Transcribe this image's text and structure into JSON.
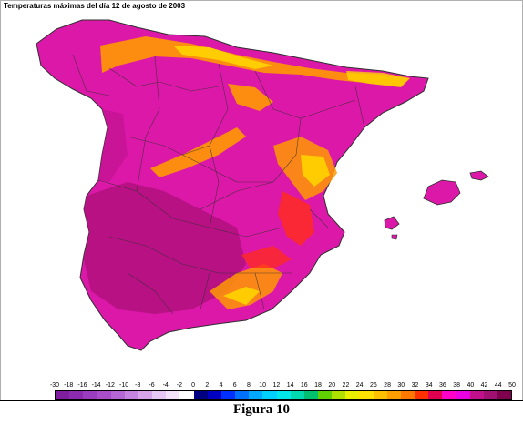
{
  "title": "Temperaturas máximas del día 12 de agosto de 2003",
  "caption": "Figura 10",
  "legend": {
    "labels": [
      "-30",
      "-18",
      "-16",
      "-14",
      "-12",
      "-10",
      "-8",
      "-6",
      "-4",
      "-2",
      "0",
      "2",
      "4",
      "6",
      "8",
      "10",
      "12",
      "14",
      "16",
      "18",
      "20",
      "22",
      "24",
      "26",
      "28",
      "30",
      "32",
      "34",
      "36",
      "38",
      "40",
      "42",
      "44",
      "50"
    ],
    "colors": [
      "#7f1fa0",
      "#8c2bb0",
      "#9a3cbf",
      "#a84ecb",
      "#b766d6",
      "#c683e0",
      "#d7a4ea",
      "#e6c6f2",
      "#f2e1f8",
      "#ffffff",
      "#000080",
      "#0000c0",
      "#0030ff",
      "#0070ff",
      "#00a8ff",
      "#00d0ff",
      "#00e8e8",
      "#00d8b0",
      "#00c070",
      "#60d000",
      "#b0e000",
      "#e8f000",
      "#ffe000",
      "#ffc000",
      "#ffa000",
      "#ff7800",
      "#ff3000",
      "#e00050",
      "#ff00c8",
      "#e800e0",
      "#c0108c",
      "#a01070",
      "#800050"
    ]
  },
  "map": {
    "colors": {
      "land": "#dc18a8",
      "hot_zone": "#b0107e",
      "orange": "#ff9a00",
      "yellow": "#ffd400",
      "red": "#ff2a20",
      "border": "#303030"
    }
  }
}
